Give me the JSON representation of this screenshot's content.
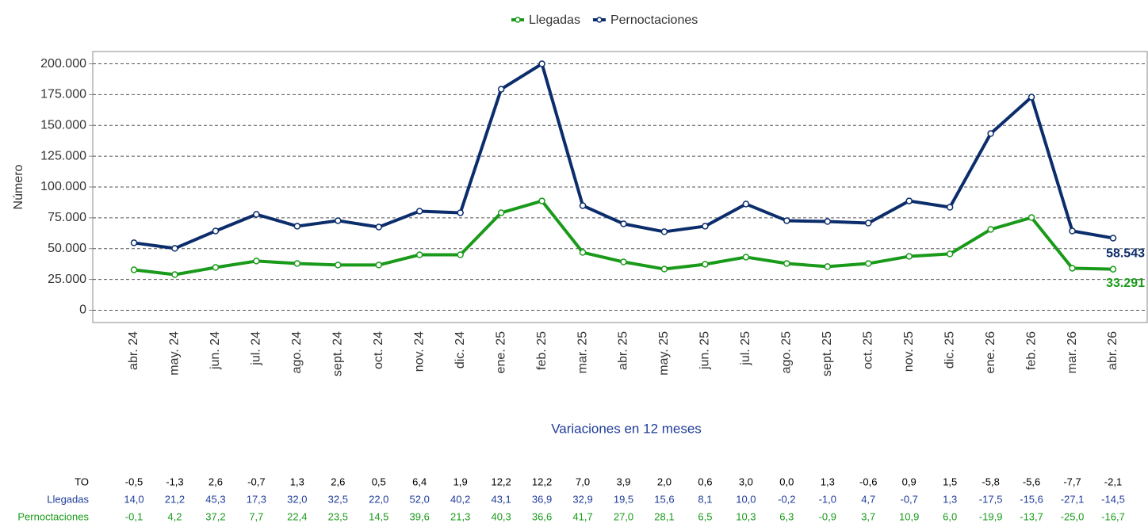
{
  "chart_data": {
    "type": "line",
    "y_label": "Número",
    "categories": [
      "abr. 24",
      "may. 24",
      "jun. 24",
      "jul. 24",
      "ago. 24",
      "sept. 24",
      "oct. 24",
      "nov. 24",
      "dic. 24",
      "ene. 25",
      "feb. 25",
      "mar. 25",
      "abr. 25",
      "may. 25",
      "jun. 25",
      "jul. 25",
      "ago. 25",
      "sept. 25",
      "oct. 25",
      "nov. 25",
      "dic. 25",
      "ene. 26",
      "feb. 26",
      "mar. 26",
      "abr. 26"
    ],
    "series": [
      {
        "name": "Llegadas",
        "color": "#1a9a1a",
        "values": [
          32800,
          28900,
          34700,
          39900,
          37900,
          36700,
          36700,
          45000,
          45000,
          79100,
          88700,
          46900,
          39200,
          33400,
          37300,
          43100,
          37900,
          35400,
          37900,
          43700,
          45700,
          65600,
          75200,
          34100,
          33291
        ],
        "value_labels": [
          null,
          null,
          null,
          null,
          null,
          null,
          null,
          null,
          null,
          null,
          null,
          null,
          null,
          null,
          null,
          null,
          null,
          null,
          null,
          null,
          null,
          null,
          null,
          null,
          "33.291"
        ]
      },
      {
        "name": "Pernoctaciones",
        "color": "#0c2d6b",
        "values": [
          54700,
          50200,
          64300,
          77800,
          68200,
          72700,
          67500,
          80400,
          79100,
          179400,
          200000,
          84900,
          70100,
          63700,
          68200,
          86200,
          72700,
          72000,
          70700,
          88700,
          83600,
          143400,
          173000,
          64300,
          58543
        ],
        "value_labels": [
          null,
          null,
          null,
          null,
          null,
          null,
          null,
          null,
          null,
          null,
          null,
          null,
          null,
          null,
          null,
          null,
          null,
          null,
          null,
          null,
          null,
          null,
          null,
          null,
          "58.543"
        ]
      }
    ],
    "ylim": [
      -10000,
      210000
    ],
    "yticks": [
      0,
      {
        "value": 25000,
        "label": "25.000"
      },
      {
        "value": 50000,
        "label": "50.000"
      },
      {
        "value": 75000,
        "label": "75.000"
      },
      {
        "value": 100000,
        "label": "100.000"
      },
      {
        "value": 125000,
        "label": "125.000"
      },
      {
        "value": 150000,
        "label": "150.000"
      },
      {
        "value": 175000,
        "label": "175.000"
      },
      {
        "value": 200000,
        "label": "200.000"
      }
    ],
    "grid": true,
    "legend": "top"
  },
  "table": {
    "title": "Variaciones en 12 meses",
    "rows": [
      {
        "label": "TO",
        "color": "#000000",
        "cells": [
          "-0,5",
          "-1,3",
          "2,6",
          "-0,7",
          "1,3",
          "2,6",
          "0,5",
          "6,4",
          "1,9",
          "12,2",
          "12,2",
          "7,0",
          "3,9",
          "2,0",
          "0,6",
          "3,0",
          "0,0",
          "1,3",
          "-0,6",
          "0,9",
          "1,5",
          "-5,8",
          "-5,6",
          "-7,7",
          "-2,1"
        ]
      },
      {
        "label": "Llegadas",
        "color": "#1f3d99",
        "cells": [
          "14,0",
          "21,2",
          "45,3",
          "17,3",
          "32,0",
          "32,5",
          "22,0",
          "52,0",
          "40,2",
          "43,1",
          "36,9",
          "32,9",
          "19,5",
          "15,6",
          "8,1",
          "10,0",
          "-0,2",
          "-1,0",
          "4,7",
          "-0,7",
          "1,3",
          "-17,5",
          "-15,6",
          "-27,1",
          "-14,5"
        ]
      },
      {
        "label": "Pernoctaciones",
        "color": "#1a9a1a",
        "cells": [
          "-0,1",
          "4,2",
          "37,2",
          "7,7",
          "22,4",
          "23,5",
          "14,5",
          "39,6",
          "21,3",
          "40,3",
          "36,6",
          "41,7",
          "27,0",
          "28,1",
          "6,5",
          "10,3",
          "6,3",
          "-0,9",
          "3,7",
          "10,9",
          "6,0",
          "-19,9",
          "-13,7",
          "-25,0",
          "-16,7"
        ]
      }
    ]
  }
}
